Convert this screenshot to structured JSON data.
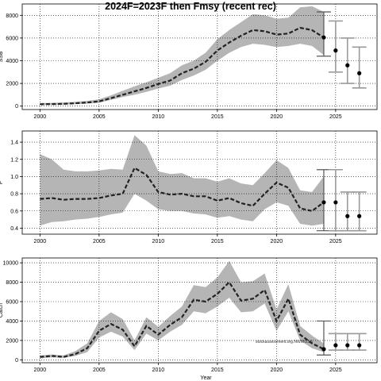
{
  "title": "2024F=2023F then Fmsy (recent rec)",
  "watermark": "stockassessment.org.NWWGSA",
  "colors": {
    "band": "#b5b5b5",
    "line": "#222222",
    "projection_bar": "#9a9a9a",
    "projection_bar_dark": "#555555",
    "grid": "#000000"
  },
  "chart_data": [
    {
      "type": "line",
      "title": "",
      "xlabel": "Year",
      "ylabel": "SSB",
      "xlim": [
        1998.5,
        2028.5
      ],
      "ylim": [
        -300,
        9000
      ],
      "xticks": [
        2000,
        2005,
        2010,
        2015,
        2020,
        2025
      ],
      "yticks": [
        0,
        2000,
        4000,
        6000,
        8000
      ],
      "grid": true,
      "years": [
        2000,
        2001,
        2002,
        2003,
        2004,
        2005,
        2006,
        2007,
        2008,
        2009,
        2010,
        2011,
        2012,
        2013,
        2014,
        2015,
        2016,
        2017,
        2018,
        2019,
        2020,
        2021,
        2022,
        2023,
        2024
      ],
      "estimate": [
        170,
        180,
        200,
        250,
        320,
        420,
        700,
        1000,
        1300,
        1600,
        1950,
        2250,
        2900,
        3300,
        3900,
        4900,
        5600,
        6200,
        6700,
        6600,
        6300,
        6400,
        6900,
        6700,
        6050
      ],
      "lower": [
        100,
        110,
        130,
        170,
        220,
        300,
        550,
        800,
        1000,
        1250,
        1550,
        1800,
        2300,
        2700,
        3200,
        4000,
        4700,
        5200,
        5500,
        5400,
        5200,
        5300,
        5500,
        5300,
        4500
      ],
      "upper": [
        280,
        290,
        320,
        380,
        460,
        600,
        950,
        1350,
        1750,
        2100,
        2500,
        2900,
        3600,
        4000,
        4700,
        5900,
        6700,
        7400,
        8100,
        8000,
        7700,
        7800,
        8700,
        8800,
        8300
      ],
      "projection": [
        {
          "year": 2024,
          "value": 6050,
          "lower": 4400,
          "upper": 8300
        },
        {
          "year": 2025,
          "value": 4900,
          "lower": 3000,
          "upper": 7500
        },
        {
          "year": 2026,
          "value": 3600,
          "lower": 2000,
          "upper": 6000
        },
        {
          "year": 2027,
          "value": 2900,
          "lower": 1600,
          "upper": 5200
        }
      ]
    },
    {
      "type": "line",
      "title": "",
      "xlabel": "Year",
      "ylabel": "F",
      "xlim": [
        1998.5,
        2028.5
      ],
      "ylim": [
        0.33,
        1.53
      ],
      "xticks": [
        2000,
        2005,
        2010,
        2015,
        2020,
        2025
      ],
      "yticks": [
        0.4,
        0.6,
        0.8,
        1.0,
        1.2,
        1.4
      ],
      "ytick_labels": [
        "0.4",
        "0.6",
        "0.8",
        "1.0",
        "1.2",
        "1.4"
      ],
      "grid": true,
      "years": [
        2000,
        2001,
        2002,
        2003,
        2004,
        2005,
        2006,
        2007,
        2008,
        2009,
        2010,
        2011,
        2012,
        2013,
        2014,
        2015,
        2016,
        2017,
        2018,
        2019,
        2020,
        2021,
        2022,
        2023,
        2024
      ],
      "estimate": [
        0.74,
        0.75,
        0.73,
        0.74,
        0.74,
        0.75,
        0.78,
        0.8,
        1.1,
        1.02,
        0.82,
        0.79,
        0.8,
        0.77,
        0.77,
        0.72,
        0.75,
        0.69,
        0.66,
        0.8,
        0.93,
        0.87,
        0.63,
        0.6,
        0.7
      ],
      "lower": [
        0.43,
        0.47,
        0.48,
        0.5,
        0.51,
        0.53,
        0.56,
        0.58,
        0.8,
        0.72,
        0.62,
        0.6,
        0.6,
        0.57,
        0.56,
        0.52,
        0.54,
        0.5,
        0.48,
        0.62,
        0.7,
        0.66,
        0.45,
        0.43,
        0.45
      ],
      "upper": [
        1.26,
        1.2,
        1.08,
        1.06,
        1.06,
        1.07,
        1.09,
        1.08,
        1.48,
        1.36,
        1.06,
        1.03,
        1.04,
        0.98,
        0.98,
        0.94,
        0.98,
        0.92,
        0.9,
        1.04,
        1.19,
        1.1,
        0.84,
        0.82,
        1.0
      ],
      "projection": [
        {
          "year": 2024,
          "value": 0.7,
          "lower": 0.37,
          "upper": 1.08
        },
        {
          "year": 2025,
          "value": 0.7,
          "lower": 0.37,
          "upper": 1.08
        },
        {
          "year": 2026,
          "value": 0.54,
          "lower": 0.37,
          "upper": 0.82
        },
        {
          "year": 2027,
          "value": 0.54,
          "lower": 0.37,
          "upper": 0.82
        }
      ]
    },
    {
      "type": "line",
      "title": "",
      "xlabel": "Year",
      "ylabel": "Catch",
      "xlim": [
        1998.5,
        2028.5
      ],
      "ylim": [
        -300,
        10500
      ],
      "xticks": [
        2000,
        2005,
        2010,
        2015,
        2020,
        2025
      ],
      "yticks": [
        0,
        2000,
        4000,
        6000,
        8000,
        10000
      ],
      "grid": true,
      "years": [
        2000,
        2001,
        2002,
        2003,
        2004,
        2005,
        2006,
        2007,
        2008,
        2009,
        2010,
        2011,
        2012,
        2013,
        2014,
        2015,
        2016,
        2017,
        2018,
        2019,
        2020,
        2021,
        2022,
        2023,
        2024
      ],
      "estimate": [
        300,
        400,
        300,
        600,
        1200,
        3000,
        3700,
        3100,
        1400,
        3500,
        2600,
        3600,
        4400,
        6200,
        6000,
        6800,
        8000,
        6100,
        6300,
        7200,
        4000,
        6300,
        2600,
        1700,
        1100
      ],
      "lower": [
        150,
        250,
        200,
        400,
        800,
        2300,
        2900,
        2400,
        1000,
        2700,
        2000,
        2900,
        3600,
        5000,
        4800,
        5500,
        6400,
        4900,
        5000,
        5800,
        3000,
        5000,
        2000,
        1200,
        800
      ],
      "upper": [
        450,
        550,
        450,
        900,
        1700,
        4000,
        4900,
        4200,
        2000,
        4400,
        3400,
        4500,
        5500,
        7700,
        7500,
        8500,
        10200,
        8000,
        8100,
        8900,
        5200,
        7800,
        3500,
        2500,
        1700
      ],
      "projection": [
        {
          "year": 2024,
          "value": 1100,
          "lower": 500,
          "upper": 4000
        },
        {
          "year": 2025,
          "value": 1500,
          "lower": 1000,
          "upper": 2700
        },
        {
          "year": 2026,
          "value": 1500,
          "lower": 1000,
          "upper": 2700
        },
        {
          "year": 2027,
          "value": 1500,
          "lower": 1000,
          "upper": 2700
        }
      ]
    }
  ]
}
